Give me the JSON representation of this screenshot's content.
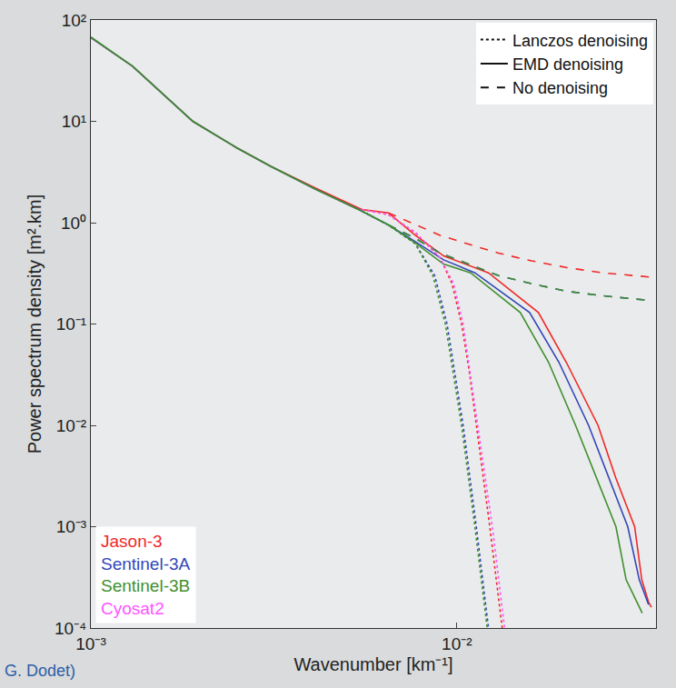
{
  "chart_data": {
    "type": "line",
    "log": true,
    "grid": false,
    "legend": "top right",
    "x_label": "Wavenumber [km⁻¹]",
    "y_label": "Power spectrum density [m².km]",
    "annotations": [
      "G. Dodet)"
    ],
    "xlim": [
      0.001,
      0.035
    ],
    "ylim": [
      0.0001,
      100
    ],
    "xticks": [
      {
        "value": 0.001,
        "label": "10⁻³"
      },
      {
        "value": 0.01,
        "label": "10⁻²"
      }
    ],
    "yticks": [
      {
        "value": 100,
        "label": "10²"
      },
      {
        "value": 10,
        "label": "10¹"
      },
      {
        "value": 1,
        "label": "10⁰"
      },
      {
        "value": 0.1,
        "label": "10⁻¹"
      },
      {
        "value": 0.01,
        "label": "10⁻²"
      },
      {
        "value": 0.001,
        "label": "10⁻³"
      },
      {
        "value": 0.0001,
        "label": "10⁻⁴"
      }
    ],
    "methods": [
      {
        "name": "Lanczos denoising",
        "line_style": "dotted"
      },
      {
        "name": "EMD denoising",
        "line_style": "solid"
      },
      {
        "name": "No denoising",
        "line_style": "dashed"
      }
    ],
    "series": [
      {
        "name": "Jason-3",
        "color": "#f02828",
        "curves": [
          {
            "method": "EMD denoising",
            "x": [
              0.001,
              0.0013,
              0.0019,
              0.0025,
              0.0031,
              0.0041,
              0.0055,
              0.0065,
              0.0077,
              0.0092,
              0.0122,
              0.0167,
              0.0199,
              0.0243,
              0.0272,
              0.0306,
              0.032,
              0.0334,
              0.034
            ],
            "values": [
              67,
              35,
              10,
              5.5,
              3.6,
              2.2,
              1.35,
              1.25,
              0.75,
              0.47,
              0.32,
              0.13,
              0.042,
              0.01,
              0.003,
              0.001,
              0.0003,
              0.00018,
              0.00016
            ]
          },
          {
            "method": "No denoising",
            "x": [
              0.0065,
              0.0077,
              0.009,
              0.011,
              0.013,
              0.016,
              0.02,
              0.025,
              0.034
            ],
            "values": [
              1.25,
              0.95,
              0.75,
              0.6,
              0.5,
              0.42,
              0.36,
              0.32,
              0.29
            ]
          },
          {
            "method": "Lanczos denoising",
            "x": [
              0.0055,
              0.0065,
              0.0077,
              0.009,
              0.0097,
              0.0103,
              0.0108,
              0.0113,
              0.0123,
              0.0133
            ],
            "values": [
              1.35,
              1.2,
              0.8,
              0.45,
              0.25,
              0.1,
              0.035,
              0.01,
              0.001,
              0.0001
            ]
          }
        ]
      },
      {
        "name": "Sentinel-3A",
        "color": "#3346b8",
        "curves": [
          {
            "method": "EMD denoising",
            "x": [
              0.001,
              0.0013,
              0.0019,
              0.0025,
              0.0031,
              0.0041,
              0.0055,
              0.0065,
              0.0077,
              0.0092,
              0.0112,
              0.0158,
              0.019,
              0.0229,
              0.0293,
              0.0315,
              0.0334
            ],
            "values": [
              67,
              35,
              10,
              5.5,
              3.6,
              2.15,
              1.3,
              0.95,
              0.65,
              0.43,
              0.32,
              0.13,
              0.042,
              0.01,
              0.001,
              0.0003,
              0.00017
            ]
          },
          {
            "method": "No denoising",
            "x": [
              0.0065,
              0.0077,
              0.009,
              0.011,
              0.013,
              0.016,
              0.02,
              0.025,
              0.034
            ],
            "values": [
              0.95,
              0.7,
              0.5,
              0.38,
              0.3,
              0.25,
              0.21,
              0.19,
              0.17
            ]
          },
          {
            "method": "Lanczos denoising",
            "x": [
              0.0055,
              0.0065,
              0.0077,
              0.0087,
              0.0094,
              0.0099,
              0.0104,
              0.0113,
              0.0122
            ],
            "values": [
              1.3,
              0.95,
              0.62,
              0.3,
              0.1,
              0.03,
              0.01,
              0.001,
              0.0001
            ]
          }
        ]
      },
      {
        "name": "Sentinel-3B",
        "color": "#3f8f2f",
        "curves": [
          {
            "method": "EMD denoising",
            "x": [
              0.001,
              0.0013,
              0.0019,
              0.0025,
              0.0031,
              0.0041,
              0.0055,
              0.0065,
              0.0077,
              0.0092,
              0.0109,
              0.0149,
              0.0178,
              0.0211,
              0.0272,
              0.029,
              0.0321
            ],
            "values": [
              68,
              35,
              10,
              5.5,
              3.6,
              2.15,
              1.3,
              0.95,
              0.63,
              0.39,
              0.32,
              0.13,
              0.042,
              0.01,
              0.001,
              0.0003,
              0.00014
            ]
          },
          {
            "method": "No denoising",
            "x": [
              0.0065,
              0.0077,
              0.009,
              0.011,
              0.013,
              0.016,
              0.02,
              0.025,
              0.034
            ],
            "values": [
              0.95,
              0.7,
              0.5,
              0.38,
              0.3,
              0.25,
              0.21,
              0.19,
              0.17
            ]
          },
          {
            "method": "Lanczos denoising",
            "x": [
              0.0055,
              0.0065,
              0.0077,
              0.0086,
              0.0093,
              0.0103,
              0.0112,
              0.0121
            ],
            "values": [
              1.3,
              0.95,
              0.62,
              0.3,
              0.1,
              0.01,
              0.001,
              0.0001
            ]
          }
        ]
      },
      {
        "name": "Cyosat2",
        "color": "#ff55ff",
        "curves": [
          {
            "method": "Lanczos denoising",
            "x": [
              0.0055,
              0.0065,
              0.0077,
              0.009,
              0.0098,
              0.0104,
              0.0114,
              0.0125,
              0.0135
            ],
            "values": [
              1.35,
              1.2,
              0.8,
              0.45,
              0.25,
              0.1,
              0.01,
              0.001,
              0.0001
            ]
          }
        ]
      }
    ]
  }
}
